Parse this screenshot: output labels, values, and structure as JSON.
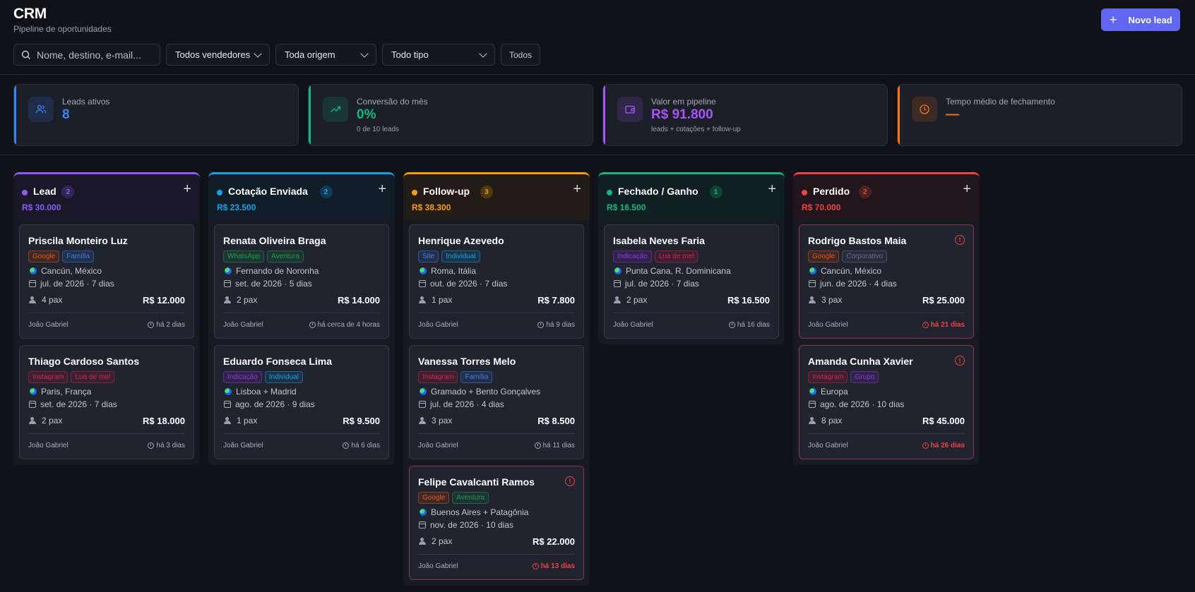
{
  "header": {
    "title": "CRM",
    "subtitle": "Pipeline de oportunidades",
    "new_lead_label": "Novo lead"
  },
  "filters": {
    "search_placeholder": "Nome, destino, e-mail...",
    "seller_select": "Todos vendedores",
    "origin_select": "Toda origem",
    "type_select": "Todo tipo",
    "all_button": "Todos"
  },
  "stats": [
    {
      "label": "Leads ativos",
      "value": "8",
      "sub": "",
      "color": "#3b82f6",
      "icon": "users-icon"
    },
    {
      "label": "Conversão do mês",
      "value": "0%",
      "sub": "0 de 10 leads",
      "color": "#10b981",
      "icon": "trending-up-icon"
    },
    {
      "label": "Valor em pipeline",
      "value": "R$ 91.800",
      "sub": "leads + cotações + follow-up",
      "color": "#a855f7",
      "icon": "wallet-icon"
    },
    {
      "label": "Tempo médio de fechamento",
      "value": "—",
      "sub": "",
      "color": "#f97316",
      "icon": "clock-icon"
    }
  ],
  "tag_colors": {
    "Google": "#ea580c",
    "Família": "#3b82f6",
    "Instagram": "#e11d48",
    "Lua de mel": "#e11d48",
    "WhatsApp": "#16a34a",
    "Aventura": "#16a34a",
    "Indicação": "#9333ea",
    "Individual": "#0ea5e9",
    "Site": "#3b82f6",
    "Corporativo": "#64748b",
    "Grupo": "#9333ea"
  },
  "columns": [
    {
      "name": "Lead",
      "count": "2",
      "total": "R$ 30.000",
      "color": "#8b5cf6",
      "cards": [
        {
          "name": "Priscila Monteiro Luz",
          "tags": [
            "Google",
            "Família"
          ],
          "destination": "Cancún, México",
          "date": "jul. de 2026 · 7 dias",
          "pax": "4 pax",
          "price": "R$ 12.000",
          "seller": "João Gabriel",
          "time": "há 2 dias",
          "late": false
        },
        {
          "name": "Thiago Cardoso Santos",
          "tags": [
            "Instagram",
            "Lua de mel"
          ],
          "destination": "Paris, França",
          "date": "set. de 2026 · 7 dias",
          "pax": "2 pax",
          "price": "R$ 18.000",
          "seller": "João Gabriel",
          "time": "há 3 dias",
          "late": false
        }
      ]
    },
    {
      "name": "Cotação Enviada",
      "count": "2",
      "total": "R$ 23.500",
      "color": "#0ea5e9",
      "cards": [
        {
          "name": "Renata Oliveira Braga",
          "tags": [
            "WhatsApp",
            "Aventura"
          ],
          "destination": "Fernando de Noronha",
          "date": "set. de 2026 · 5 dias",
          "pax": "2 pax",
          "price": "R$ 14.000",
          "seller": "João Gabriel",
          "time": "há cerca de 4 horas",
          "late": false
        },
        {
          "name": "Eduardo Fonseca Lima",
          "tags": [
            "Indicação",
            "Individual"
          ],
          "destination": "Lisboa + Madrid",
          "date": "ago. de 2026 · 9 dias",
          "pax": "1 pax",
          "price": "R$ 9.500",
          "seller": "João Gabriel",
          "time": "há 6 dias",
          "late": false
        }
      ]
    },
    {
      "name": "Follow-up",
      "count": "3",
      "total": "R$ 38.300",
      "color": "#f59e0b",
      "cards": [
        {
          "name": "Henrique Azevedo",
          "tags": [
            "Site",
            "Individual"
          ],
          "destination": "Roma, Itália",
          "date": "out. de 2026 · 7 dias",
          "pax": "1 pax",
          "price": "R$ 7.800",
          "seller": "João Gabriel",
          "time": "há 9 dias",
          "late": false
        },
        {
          "name": "Vanessa Torres Melo",
          "tags": [
            "Instagram",
            "Família"
          ],
          "destination": "Gramado + Bento Gonçalves",
          "date": "jul. de 2026 · 4 dias",
          "pax": "3 pax",
          "price": "R$ 8.500",
          "seller": "João Gabriel",
          "time": "há 11 dias",
          "late": false
        },
        {
          "name": "Felipe Cavalcanti Ramos",
          "tags": [
            "Google",
            "Aventura"
          ],
          "destination": "Buenos Aires + Patagônia",
          "date": "nov. de 2026 · 10 dias",
          "pax": "2 pax",
          "price": "R$ 22.000",
          "seller": "João Gabriel",
          "time": "há 13 dias",
          "late": true
        }
      ]
    },
    {
      "name": "Fechado / Ganho",
      "count": "1",
      "total": "R$ 16.500",
      "color": "#10b981",
      "cards": [
        {
          "name": "Isabela Neves Faria",
          "tags": [
            "Indicação",
            "Lua de mel"
          ],
          "destination": "Punta Cana, R. Dominicana",
          "date": "jul. de 2026 · 7 dias",
          "pax": "2 pax",
          "price": "R$ 16.500",
          "seller": "João Gabriel",
          "time": "há 16 dias",
          "late": false
        }
      ]
    },
    {
      "name": "Perdido",
      "count": "2",
      "total": "R$ 70.000",
      "color": "#ef4444",
      "cards": [
        {
          "name": "Rodrigo Bastos Maia",
          "tags": [
            "Google",
            "Corporativo"
          ],
          "destination": "Cancún, México",
          "date": "jun. de 2026 · 4 dias",
          "pax": "3 pax",
          "price": "R$ 25.000",
          "seller": "João Gabriel",
          "time": "há 21 dias",
          "late": true
        },
        {
          "name": "Amanda Cunha Xavier",
          "tags": [
            "Instagram",
            "Grupo"
          ],
          "destination": "Europa",
          "date": "ago. de 2026 · 10 dias",
          "pax": "8 pax",
          "price": "R$ 45.000",
          "seller": "João Gabriel",
          "time": "há 26 dias",
          "late": true
        }
      ]
    }
  ]
}
